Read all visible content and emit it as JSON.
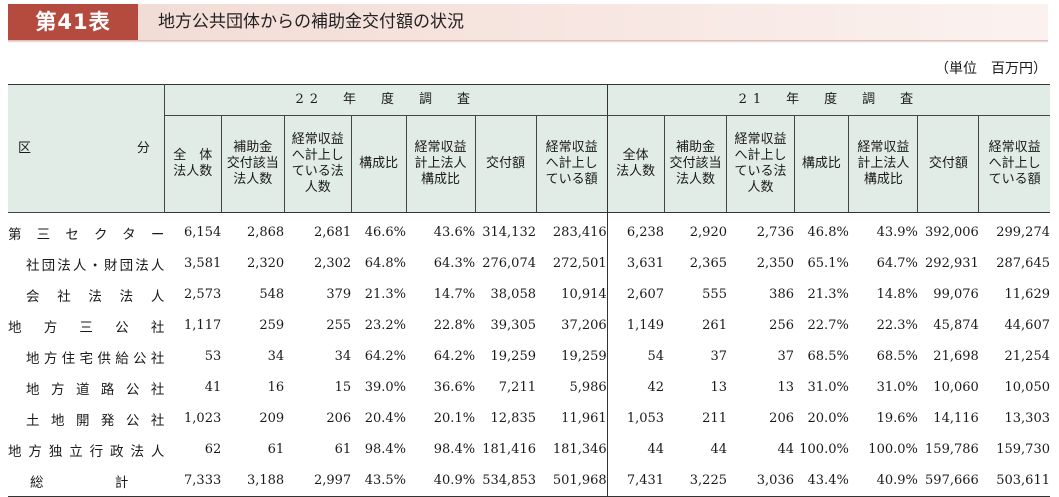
{
  "header": {
    "table_number": "第41表",
    "title": "地方公共団体からの補助金交付額の状況"
  },
  "unit_label": "（単位　百万円）",
  "table": {
    "corner_left": "区",
    "corner_right": "分",
    "groups": [
      "22　年　度　調　査",
      "21　年　度　調　査"
    ],
    "columns": [
      "全　体\n法人数",
      "補助金\n交付該当\n法人数",
      "経常収益\nへ計上し\nている法\n人数",
      "構成比",
      "経常収益\n計上法人\n構成比",
      "交付額",
      "経常収益\nへ計上し\nている額"
    ],
    "columns_b": [
      "全体\n法人数",
      "補助金\n交付該当\n法人数",
      "経常収益\nへ計上し\nている法\n人数",
      "構成比",
      "経常収益\n計上法人\n構成比",
      "交付額",
      "経常収益\nへ計上し\nている額"
    ],
    "rows": [
      {
        "label": "第三セクター",
        "style": "main",
        "values": [
          "6,154",
          "2,868",
          "2,681",
          "46.6%",
          "43.6%",
          "314,132",
          "283,416",
          "6,238",
          "2,920",
          "2,736",
          "46.8%",
          "43.9%",
          "392,006",
          "299,274"
        ]
      },
      {
        "label": "社団法人・財団法人",
        "style": "indent",
        "values": [
          "3,581",
          "2,320",
          "2,302",
          "64.8%",
          "64.3%",
          "276,074",
          "272,501",
          "3,631",
          "2,365",
          "2,350",
          "65.1%",
          "64.7%",
          "292,931",
          "287,645"
        ]
      },
      {
        "label": "会社法法人",
        "style": "indent",
        "values": [
          "2,573",
          "548",
          "379",
          "21.3%",
          "14.7%",
          "38,058",
          "10,914",
          "2,607",
          "555",
          "386",
          "21.3%",
          "14.8%",
          "99,076",
          "11,629"
        ]
      },
      {
        "label": "地方三公社",
        "style": "main",
        "values": [
          "1,117",
          "259",
          "255",
          "23.2%",
          "22.8%",
          "39,305",
          "37,206",
          "1,149",
          "261",
          "256",
          "22.7%",
          "22.3%",
          "45,874",
          "44,607"
        ]
      },
      {
        "label": "地方住宅供給公社",
        "style": "indent",
        "values": [
          "53",
          "34",
          "34",
          "64.2%",
          "64.2%",
          "19,259",
          "19,259",
          "54",
          "37",
          "37",
          "68.5%",
          "68.5%",
          "21,698",
          "21,254"
        ]
      },
      {
        "label": "地方道路公社",
        "style": "indent",
        "values": [
          "41",
          "16",
          "15",
          "39.0%",
          "36.6%",
          "7,211",
          "5,986",
          "42",
          "13",
          "13",
          "31.0%",
          "31.0%",
          "10,060",
          "10,050"
        ]
      },
      {
        "label": "土地開発公社",
        "style": "indent",
        "values": [
          "1,023",
          "209",
          "206",
          "20.4%",
          "20.1%",
          "12,835",
          "11,961",
          "1,053",
          "211",
          "206",
          "20.0%",
          "19.6%",
          "14,116",
          "13,303"
        ]
      },
      {
        "label": "地方独立行政法人",
        "style": "main",
        "values": [
          "62",
          "61",
          "61",
          "98.4%",
          "98.4%",
          "181,416",
          "181,346",
          "44",
          "44",
          "44",
          "100.0%",
          "100.0%",
          "159,786",
          "159,730"
        ]
      },
      {
        "label": "総計",
        "style": "total",
        "values": [
          "7,333",
          "3,188",
          "2,997",
          "43.5%",
          "40.9%",
          "534,853",
          "501,968",
          "7,431",
          "3,225",
          "3,036",
          "43.4%",
          "40.9%",
          "597,666",
          "503,611"
        ]
      }
    ]
  }
}
